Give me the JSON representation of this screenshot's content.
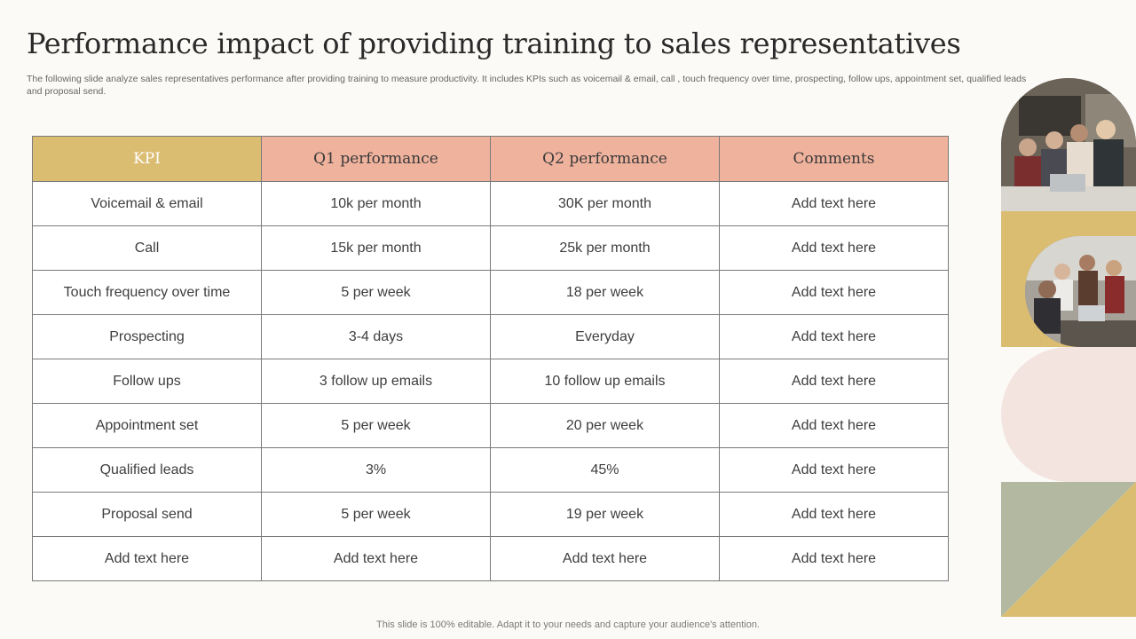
{
  "slide": {
    "title": "Performance impact of providing training to sales representatives",
    "subtitle": "The following slide analyze sales representatives performance after providing training to measure productivity. It includes KPIs such as voicemail & email, call , touch frequency over time, prospecting, follow ups, appointment set, qualified leads and proposal send.",
    "footer": "This slide is 100% editable. Adapt it to your needs and capture your audience's attention."
  },
  "table": {
    "headers": [
      "KPI",
      "Q1 performance",
      "Q2 performance",
      "Comments"
    ],
    "rows": [
      [
        "Voicemail & email",
        "10k per month",
        "30K per month",
        "Add text here"
      ],
      [
        "Call",
        "15k per month",
        "25k per month",
        "Add text here"
      ],
      [
        "Touch frequency  over time",
        "5 per week",
        "18 per week",
        "Add text here"
      ],
      [
        "Prospecting",
        "3-4 days",
        "Everyday",
        "Add text here"
      ],
      [
        "Follow ups",
        "3 follow up emails",
        "10 follow up emails",
        "Add text here"
      ],
      [
        "Appointment set",
        "5 per week",
        "20 per week",
        "Add text here"
      ],
      [
        "Qualified leads",
        "3%",
        "45%",
        "Add text here"
      ],
      [
        "Proposal send",
        "5 per week",
        "19 per week",
        "Add text here"
      ],
      [
        "Add text here",
        "Add text here",
        "Add text here",
        "Add text here"
      ]
    ]
  },
  "colors": {
    "kpi_header": "#dbbd72",
    "header": "#efb29d",
    "accent_gold": "#dbbd72",
    "accent_pink": "#f3e4df",
    "accent_sage": "#b3b9a0"
  },
  "images": {
    "top": "team-meeting-photo",
    "middle": "office-team-photo"
  }
}
